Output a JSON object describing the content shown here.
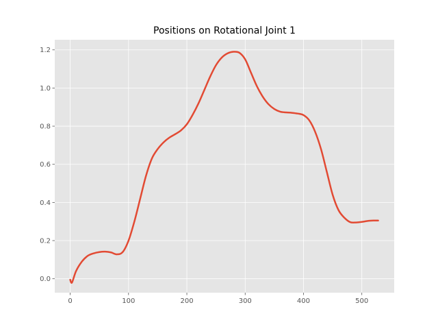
{
  "chart_data": {
    "type": "line",
    "title": "Positions on Rotational Joint 1",
    "xlabel": "",
    "ylabel": "",
    "xlim": [
      -26.5,
      555.5
    ],
    "ylim": [
      -0.073,
      1.253
    ],
    "x_ticks": [
      0,
      100,
      200,
      300,
      400,
      500
    ],
    "y_ticks": [
      0.0,
      0.2,
      0.4,
      0.6,
      0.8,
      1.0,
      1.2
    ],
    "grid": true,
    "colors": {
      "background": "#e5e5e5",
      "grid": "#ffffff",
      "line": "#e24a33"
    },
    "series": [
      {
        "x": [
          0,
          3,
          10,
          20,
          30,
          40,
          50,
          60,
          70,
          80,
          90,
          100,
          110,
          120,
          130,
          140,
          150,
          160,
          170,
          180,
          190,
          200,
          210,
          220,
          230,
          240,
          250,
          260,
          270,
          280,
          290,
          300,
          310,
          320,
          330,
          340,
          350,
          360,
          370,
          380,
          390,
          400,
          410,
          420,
          430,
          440,
          450,
          460,
          470,
          480,
          490,
          500,
          510,
          520,
          528
        ],
        "y": [
          -0.005,
          -0.02,
          0.04,
          0.09,
          0.12,
          0.133,
          0.14,
          0.142,
          0.138,
          0.128,
          0.14,
          0.2,
          0.3,
          0.42,
          0.54,
          0.63,
          0.68,
          0.715,
          0.74,
          0.758,
          0.778,
          0.81,
          0.86,
          0.92,
          0.99,
          1.06,
          1.12,
          1.16,
          1.182,
          1.19,
          1.185,
          1.15,
          1.08,
          1.01,
          0.955,
          0.915,
          0.89,
          0.876,
          0.872,
          0.87,
          0.866,
          0.858,
          0.83,
          0.77,
          0.68,
          0.56,
          0.44,
          0.36,
          0.32,
          0.297,
          0.295,
          0.298,
          0.303,
          0.305,
          0.305
        ]
      }
    ]
  }
}
